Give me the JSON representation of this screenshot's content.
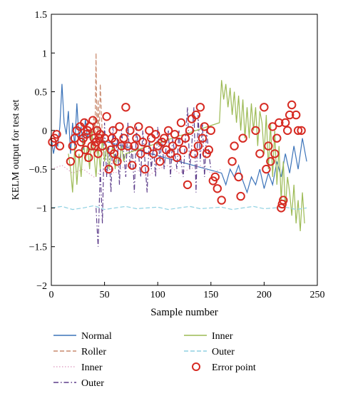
{
  "chart_data": {
    "type": "line",
    "xlabel": "Sample number",
    "ylabel": "KELM output for test set",
    "xlim": [
      0,
      250
    ],
    "ylim": [
      -2,
      1.5
    ],
    "xticks": [
      "0",
      "50",
      "100",
      "150",
      "200",
      "250"
    ],
    "yticks": [
      "1.5",
      "1",
      "0.5",
      "0",
      "−0.5",
      "−1",
      "−1.5",
      "−2"
    ],
    "grid": false,
    "legend_position": "bottom",
    "series": [
      {
        "name": "Normal",
        "color": "#3b73b9",
        "style": "solid",
        "x": [
          0,
          2,
          4,
          6,
          8,
          10,
          12,
          14,
          16,
          18,
          20,
          22,
          24,
          26,
          28,
          30,
          32,
          34,
          36,
          38,
          40,
          160,
          164,
          168,
          172,
          176,
          180,
          184,
          188,
          192,
          196,
          200,
          204,
          208,
          212,
          216,
          220,
          224,
          228,
          232,
          236,
          240
        ],
        "y": [
          -0.1,
          -0.3,
          -0.15,
          -0.2,
          0.05,
          0.6,
          0.1,
          -0.05,
          0.25,
          -0.3,
          0.1,
          -0.2,
          0.35,
          -0.1,
          0.05,
          -0.25,
          0.15,
          -0.1,
          0.0,
          -0.2,
          -0.1,
          -0.55,
          -0.7,
          -0.5,
          -0.6,
          -0.45,
          -0.65,
          -0.8,
          -0.6,
          -0.7,
          -0.5,
          -0.75,
          -0.55,
          -0.7,
          -0.4,
          -0.6,
          -0.3,
          -0.55,
          -0.2,
          -0.5,
          -0.1,
          -0.4
        ]
      },
      {
        "name": "Roller",
        "color": "#c98a6e",
        "style": "dashed",
        "x": [
          38,
          40,
          41,
          42,
          43,
          44,
          45,
          46,
          48,
          52
        ],
        "y": [
          -0.2,
          0.2,
          -0.1,
          1.0,
          -0.3,
          0.4,
          -0.2,
          0.6,
          -0.1,
          -0.2
        ]
      },
      {
        "name": "Inner",
        "color": "#e2a7c8",
        "style": "dotted",
        "x": [
          0,
          10,
          20,
          30,
          40,
          50,
          60,
          70,
          80,
          90,
          100,
          110,
          120,
          130,
          140,
          150,
          160
        ],
        "y": [
          -0.5,
          -0.45,
          -0.55,
          -0.5,
          -0.6,
          -0.5,
          -0.55,
          -0.45,
          -0.5,
          -0.6,
          -0.5,
          -0.45,
          -0.55,
          -0.5,
          -0.45,
          -0.55,
          -0.5
        ]
      },
      {
        "name": "Outer",
        "color": "#5d3d8a",
        "style": "dashdot",
        "x": [
          42,
          44,
          46,
          48,
          50,
          52,
          54,
          56,
          58,
          60,
          62,
          64,
          66,
          68,
          70,
          72,
          74,
          76,
          78,
          80,
          82,
          84,
          86,
          88,
          90,
          92,
          94,
          96,
          98,
          100,
          102,
          104,
          106,
          108,
          110,
          112,
          114,
          116,
          118,
          120,
          122,
          124,
          126,
          128,
          130,
          132,
          134,
          136,
          138,
          140,
          142,
          144,
          146,
          148,
          150
        ],
        "y": [
          -1.0,
          -1.5,
          -0.5,
          -1.2,
          0.1,
          -0.6,
          -0.2,
          -0.8,
          0.05,
          -0.4,
          -0.1,
          -0.7,
          0.0,
          -0.3,
          -0.6,
          0.1,
          -0.5,
          -0.2,
          -0.8,
          0.05,
          -0.3,
          -0.6,
          0.0,
          -0.4,
          -0.8,
          -0.1,
          -0.5,
          -0.2,
          -0.6,
          0.05,
          -0.4,
          -0.1,
          -0.5,
          -0.2,
          0.0,
          -0.6,
          -0.1,
          -0.3,
          -0.5,
          0.0,
          -0.4,
          -0.6,
          -0.1,
          0.3,
          -0.5,
          -0.2,
          0.3,
          -0.8,
          0.2,
          -0.4,
          0.1,
          -0.6,
          0.0,
          -0.3,
          -0.5
        ]
      },
      {
        "name": "Inner",
        "color": "#9cba54",
        "style": "solid",
        "x": [
          16,
          18,
          20,
          22,
          24,
          26,
          28,
          30,
          32,
          34,
          36,
          38,
          40,
          42,
          44,
          46,
          48,
          50,
          52,
          54,
          56,
          58,
          60,
          62,
          64,
          66,
          68,
          70,
          158,
          160,
          162,
          164,
          166,
          168,
          170,
          172,
          174,
          176,
          178,
          180,
          182,
          184,
          186,
          188,
          190,
          192,
          194,
          196,
          198,
          200,
          202,
          204,
          206,
          208,
          210,
          212,
          214,
          216,
          218,
          220,
          222,
          224,
          226,
          228,
          230,
          232,
          234,
          236,
          238
        ],
        "y": [
          -0.3,
          -0.5,
          -0.8,
          -0.2,
          -0.7,
          -0.3,
          -0.6,
          -0.1,
          -0.4,
          -0.2,
          -0.5,
          0.0,
          -0.3,
          -0.6,
          -0.2,
          -0.5,
          -0.1,
          -0.4,
          -0.2,
          -0.5,
          -0.3,
          -0.2,
          -0.5,
          -0.3,
          -0.4,
          -0.2,
          -0.4,
          -0.3,
          0.1,
          0.65,
          0.4,
          0.6,
          0.3,
          0.55,
          0.2,
          0.5,
          0.1,
          0.45,
          0.0,
          0.4,
          -0.1,
          0.3,
          -0.1,
          0.35,
          0.0,
          0.3,
          -0.2,
          0.25,
          0.1,
          -0.3,
          0.2,
          -0.5,
          0.1,
          -0.6,
          0.0,
          -0.7,
          -0.2,
          -0.9,
          -0.4,
          -1.0,
          -0.6,
          -0.8,
          -1.1,
          -0.7,
          -1.2,
          -0.9,
          -1.3,
          -0.8,
          -1.2
        ]
      },
      {
        "name": "Outer",
        "color": "#8fd1e2",
        "style": "dashed",
        "x": [
          0,
          10,
          20,
          30,
          40,
          50,
          60,
          70,
          80,
          90,
          100,
          110,
          120,
          130,
          140,
          150,
          160,
          170,
          180,
          190,
          200,
          210,
          220,
          230,
          240
        ],
        "y": [
          -1.0,
          -0.98,
          -1.02,
          -1.0,
          -0.97,
          -1.02,
          -1.0,
          -0.98,
          -1.01,
          -1.0,
          -0.99,
          -1.02,
          -1.0,
          -0.98,
          -1.01,
          -1.0,
          -0.99,
          -1.02,
          -1.0,
          -0.98,
          -1.01,
          -1.0,
          -0.99,
          -1.02,
          -1.0
        ]
      }
    ],
    "error_points": {
      "name": "Error point",
      "color": "#d62a22",
      "x": [
        1,
        3,
        5,
        8,
        18,
        20,
        22,
        24,
        26,
        27,
        28,
        30,
        31,
        32,
        33,
        34,
        35,
        36,
        38,
        39,
        40,
        41,
        42,
        43,
        44,
        45,
        46,
        48,
        50,
        52,
        54,
        56,
        57,
        58,
        59,
        60,
        62,
        64,
        66,
        68,
        70,
        72,
        74,
        76,
        78,
        80,
        82,
        84,
        86,
        88,
        90,
        92,
        94,
        96,
        98,
        100,
        102,
        104,
        106,
        108,
        110,
        112,
        114,
        116,
        118,
        120,
        122,
        124,
        126,
        128,
        130,
        132,
        134,
        136,
        138,
        140,
        142,
        144,
        146,
        148,
        150,
        152,
        154,
        156,
        160,
        170,
        172,
        176,
        178,
        180,
        192,
        196,
        200,
        202,
        204,
        206,
        208,
        210,
        212,
        214,
        216,
        217,
        218,
        220,
        222,
        224,
        226,
        230,
        232,
        235
      ],
      "y": [
        -0.15,
        -0.1,
        -0.05,
        -0.2,
        -0.4,
        -0.2,
        -0.1,
        0.0,
        -0.3,
        0.05,
        -0.15,
        -0.1,
        0.1,
        -0.25,
        -0.05,
        0.0,
        -0.35,
        0.05,
        -0.2,
        0.13,
        -0.1,
        -0.2,
        -0.15,
        0.0,
        -0.3,
        -0.1,
        -0.05,
        -0.2,
        -0.1,
        0.18,
        -0.5,
        -0.25,
        -0.1,
        0.0,
        -0.3,
        -0.15,
        -0.4,
        0.05,
        -0.2,
        -0.1,
        0.3,
        -0.2,
        0.0,
        -0.45,
        -0.2,
        -0.1,
        0.05,
        -0.3,
        -0.15,
        -0.5,
        -0.25,
        0.0,
        -0.1,
        -0.3,
        -0.05,
        -0.2,
        -0.4,
        -0.15,
        -0.1,
        -0.25,
        0.0,
        -0.3,
        -0.2,
        -0.05,
        -0.35,
        -0.15,
        0.1,
        -0.25,
        -0.1,
        -0.7,
        0.0,
        0.15,
        -0.3,
        0.2,
        -0.2,
        0.3,
        -0.1,
        0.05,
        -0.3,
        -0.25,
        0.0,
        -0.65,
        -0.6,
        -0.75,
        -0.9,
        -0.4,
        -0.2,
        -0.6,
        -0.85,
        -0.1,
        0.0,
        -0.3,
        0.3,
        -0.5,
        -0.2,
        -0.4,
        0.05,
        -0.3,
        -0.1,
        0.1,
        -1.0,
        -0.95,
        -0.9,
        0.1,
        0.0,
        0.2,
        0.33,
        0.2,
        0.0,
        0.0
      ]
    }
  },
  "legend": [
    {
      "label": "Normal",
      "color": "#3b73b9",
      "style": "solid",
      "kind": "line"
    },
    {
      "label": "Inner",
      "color": "#9cba54",
      "style": "solid",
      "kind": "line"
    },
    {
      "label": "Roller",
      "color": "#c98a6e",
      "style": "dashed",
      "kind": "line"
    },
    {
      "label": "Outer",
      "color": "#8fd1e2",
      "style": "dashed",
      "kind": "line"
    },
    {
      "label": "Inner",
      "color": "#e2a7c8",
      "style": "dotted",
      "kind": "line"
    },
    {
      "label": "Error point",
      "color": "#d62a22",
      "style": "circle",
      "kind": "marker"
    },
    {
      "label": "Outer",
      "color": "#5d3d8a",
      "style": "dashdot",
      "kind": "line"
    }
  ]
}
